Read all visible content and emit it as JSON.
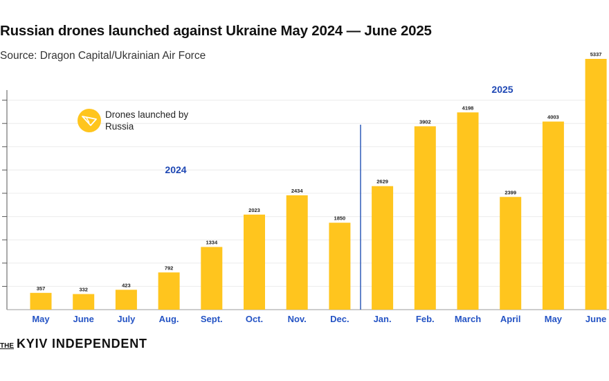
{
  "header": {
    "title": "Russian drones launched against Ukraine May 2024 — June 2025",
    "subtitle": "Source: Dragon Capital/Ukrainian Air Force"
  },
  "legend": {
    "label": "Drones launched by Russia",
    "icon": "drone-icon"
  },
  "brand": {
    "the": "THE",
    "name": "KYIV INDEPENDENT"
  },
  "colors": {
    "bar": "#FFC51E",
    "year_label": "#1E47B4",
    "month_label": "#2453C4",
    "divider": "#2F5BB8"
  },
  "chart_data": {
    "type": "bar",
    "categories": [
      "May",
      "June",
      "July",
      "Aug.",
      "Sept.",
      "Oct.",
      "Nov.",
      "Dec.",
      "Jan.",
      "Feb.",
      "March",
      "April",
      "May",
      "June"
    ],
    "values": [
      357,
      332,
      423,
      792,
      1334,
      2023,
      2434,
      1850,
      2629,
      3902,
      4198,
      2399,
      4003,
      5337
    ],
    "title": "Russian drones launched against Ukraine May 2024 — June 2025",
    "xlabel": "",
    "ylabel": "",
    "ylim": [
      0,
      5500
    ],
    "grid": true,
    "legend_position": "top-left",
    "annotations": [
      {
        "text": "2024",
        "group": "2024"
      },
      {
        "text": "2025",
        "group": "2025"
      }
    ]
  }
}
